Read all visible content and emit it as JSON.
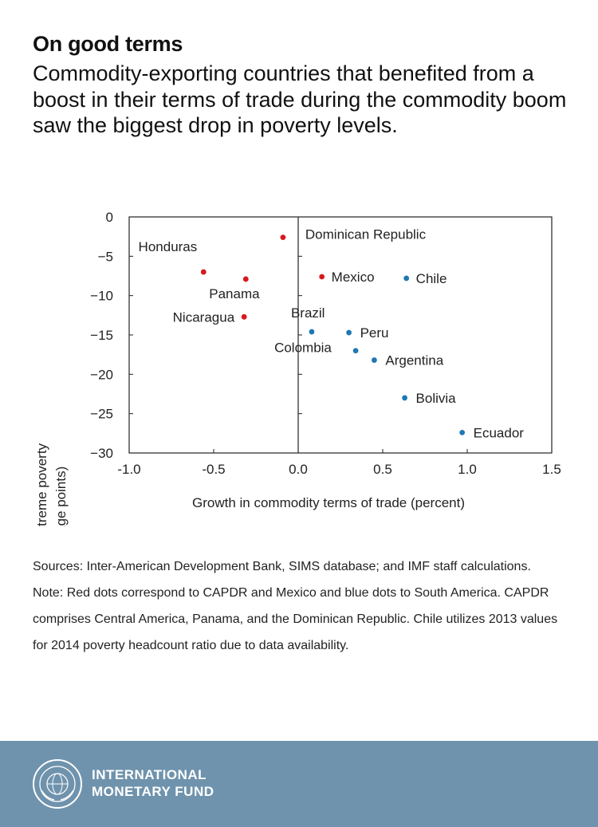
{
  "header": {
    "title": "On good terms",
    "subtitle": "Commodity-exporting countries that benefited from a boost in their terms of trade during the commodity boom saw the biggest drop in poverty levels."
  },
  "chart_data": {
    "type": "scatter",
    "xlabel": "Growth in commodity terms of trade (percent)",
    "ylabel_line1": "Change in extreme poverty",
    "ylabel_line2": "(percentage points)",
    "xlim": [
      -1.0,
      1.5
    ],
    "ylim": [
      -30,
      0
    ],
    "xticks": [
      -1.0,
      -0.5,
      0.0,
      0.5,
      1.0,
      1.5
    ],
    "xtick_labels": [
      "-1.0",
      "-0.5",
      "0.0",
      "0.5",
      "1.0",
      "1.5"
    ],
    "yticks": [
      0,
      -5,
      -10,
      -15,
      -20,
      -25,
      -30
    ],
    "ytick_labels": [
      "0",
      "−5",
      "−10",
      "−15",
      "−20",
      "−25",
      "−30"
    ],
    "grid": false,
    "colors": {
      "red": "#d7191c",
      "blue": "#1f78b4"
    },
    "points": [
      {
        "label": "Dominican Republic",
        "x": -0.09,
        "y": -2.6,
        "color": "red"
      },
      {
        "label": "Honduras",
        "x": -0.56,
        "y": -7.0,
        "color": "red"
      },
      {
        "label": "Panama",
        "x": -0.31,
        "y": -7.9,
        "color": "red"
      },
      {
        "label": "Nicaragua",
        "x": -0.32,
        "y": -12.7,
        "color": "red"
      },
      {
        "label": "Mexico",
        "x": 0.14,
        "y": -7.6,
        "color": "red"
      },
      {
        "label": "Chile",
        "x": 0.64,
        "y": -7.8,
        "color": "blue"
      },
      {
        "label": "Brazil",
        "x": 0.08,
        "y": -14.6,
        "color": "blue"
      },
      {
        "label": "Peru",
        "x": 0.3,
        "y": -14.7,
        "color": "blue"
      },
      {
        "label": "Colombia",
        "x": 0.34,
        "y": -17.0,
        "color": "blue"
      },
      {
        "label": "Argentina",
        "x": 0.45,
        "y": -18.2,
        "color": "blue"
      },
      {
        "label": "Bolivia",
        "x": 0.63,
        "y": -23.0,
        "color": "blue"
      },
      {
        "label": "Ecuador",
        "x": 0.97,
        "y": -27.4,
        "color": "blue"
      }
    ]
  },
  "notes": {
    "sources": "Sources: Inter-American Development Bank, SIMS database; and IMF staff calculations.",
    "note": "Note: Red dots correspond to CAPDR and Mexico and blue dots to South America. CAPDR comprises Central America, Panama, and the Dominican Republic. Chile utilizes 2013 values for 2014 poverty headcount ratio due to data availability."
  },
  "footer": {
    "org_line1": "INTERNATIONAL",
    "org_line2": "MONETARY FUND",
    "seal_icon": "imf-seal-icon",
    "background": "#6f93ad"
  }
}
